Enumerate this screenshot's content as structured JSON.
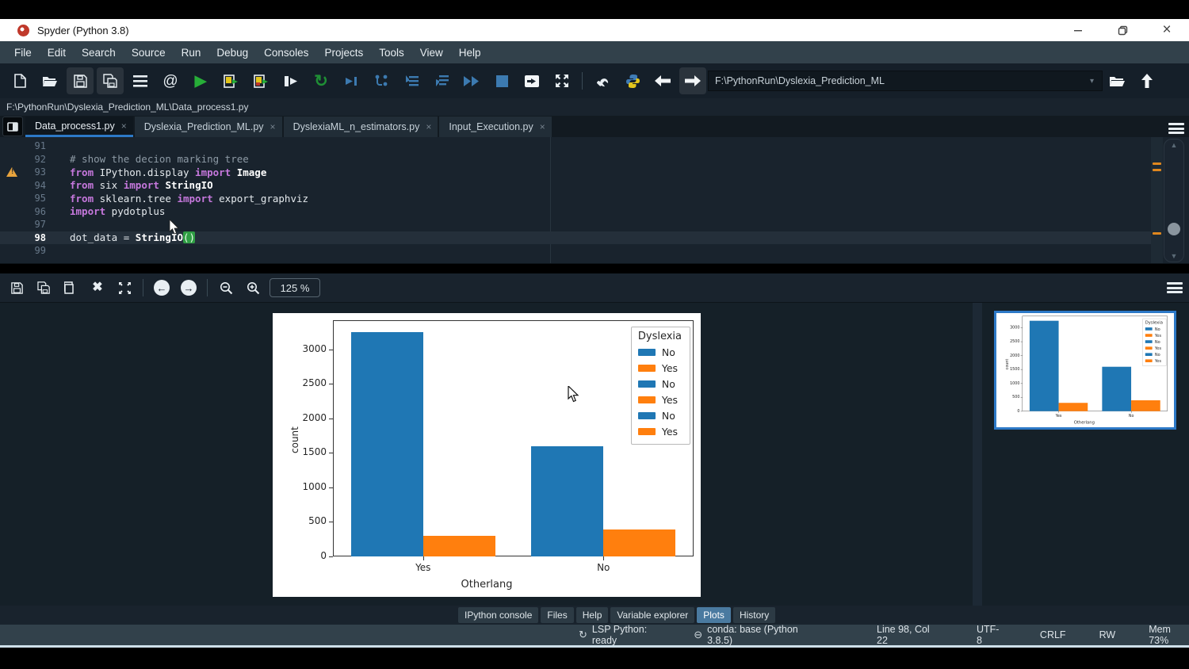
{
  "window": {
    "title": "Spyder (Python 3.8)",
    "controls": {
      "minimize": "minimize",
      "restore": "restore",
      "close": "close"
    }
  },
  "menu": {
    "items": [
      "File",
      "Edit",
      "Search",
      "Source",
      "Run",
      "Debug",
      "Consoles",
      "Projects",
      "Tools",
      "View",
      "Help"
    ]
  },
  "toolbar": {
    "icons": [
      "new-file",
      "open-file",
      "save",
      "save-all",
      "file-switcher",
      "find-symbols",
      "run",
      "run-cell",
      "run-cell-advance",
      "run-selection",
      "rerun-cell",
      "debug",
      "debug-step",
      "debug-step-into",
      "debug-step-return",
      "debug-continue",
      "stop",
      "maximize-pane",
      "fullscreen",
      "preferences",
      "python-path-manager",
      "back",
      "forward",
      "browse-directory",
      "go-up"
    ],
    "path_value": "F:\\PythonRun\\Dyslexia_Prediction_ML"
  },
  "breadcrumb": {
    "path": "F:\\PythonRun\\Dyslexia_Prediction_ML\\Data_process1.py"
  },
  "editor_tabs": [
    {
      "label": "Data_process1.py",
      "active": true
    },
    {
      "label": "Dyslexia_Prediction_ML.py",
      "active": false
    },
    {
      "label": "DyslexiaML_n_estimators.py",
      "active": false
    },
    {
      "label": "Input_Execution.py",
      "active": false
    }
  ],
  "editor": {
    "lines": [
      {
        "num": "91",
        "segments": []
      },
      {
        "num": "92",
        "segments": [
          {
            "t": "# show the decion marking tree",
            "c": "cm"
          }
        ]
      },
      {
        "num": "93",
        "warning": true,
        "segments": [
          {
            "t": "from",
            "c": "kw"
          },
          {
            "t": " IPython.display ",
            "c": "pl"
          },
          {
            "t": "import",
            "c": "kw"
          },
          {
            "t": " ",
            "c": "pl"
          },
          {
            "t": "Image",
            "c": "df"
          }
        ]
      },
      {
        "num": "94",
        "segments": [
          {
            "t": "from",
            "c": "kw"
          },
          {
            "t": " six ",
            "c": "pl"
          },
          {
            "t": "import",
            "c": "kw"
          },
          {
            "t": " ",
            "c": "pl"
          },
          {
            "t": "StringIO",
            "c": "df"
          }
        ]
      },
      {
        "num": "95",
        "segments": [
          {
            "t": "from",
            "c": "kw"
          },
          {
            "t": " sklearn.tree ",
            "c": "pl"
          },
          {
            "t": "import",
            "c": "kw"
          },
          {
            "t": " export_graphviz",
            "c": "pl"
          }
        ]
      },
      {
        "num": "96",
        "segments": [
          {
            "t": "import",
            "c": "kw"
          },
          {
            "t": " pydotplus",
            "c": "pl"
          }
        ]
      },
      {
        "num": "97",
        "segments": []
      },
      {
        "num": "98",
        "current": true,
        "segments": [
          {
            "t": "dot_data = ",
            "c": "pl"
          },
          {
            "t": "StringIO",
            "c": "df"
          },
          {
            "t": "()",
            "c": "paren"
          }
        ]
      },
      {
        "num": "99",
        "segments": []
      }
    ]
  },
  "plots_toolbar": {
    "icons": [
      "save-plot",
      "save-all-plots",
      "copy-plot",
      "remove-plot",
      "fit-plot",
      "previous-plot",
      "next-plot",
      "zoom-out",
      "zoom-in"
    ],
    "zoom_level": "125 %"
  },
  "chart_data": {
    "type": "bar",
    "title": "",
    "xlabel": "Otherlang",
    "ylabel": "count",
    "categories": [
      "Yes",
      "No"
    ],
    "series": [
      {
        "name": "No",
        "color": "#1f77b4",
        "values": [
          3250,
          1600
        ]
      },
      {
        "name": "Yes",
        "color": "#ff7f0e",
        "values": [
          300,
          390
        ]
      }
    ],
    "legend": {
      "title": "Dyslexia",
      "position": "upper right",
      "entries": [
        {
          "label": "No",
          "color": "#1f77b4"
        },
        {
          "label": "Yes",
          "color": "#ff7f0e"
        },
        {
          "label": "No",
          "color": "#1f77b4"
        },
        {
          "label": "Yes",
          "color": "#ff7f0e"
        },
        {
          "label": "No",
          "color": "#1f77b4"
        },
        {
          "label": "Yes",
          "color": "#ff7f0e"
        }
      ]
    },
    "yticks": [
      0,
      500,
      1000,
      1500,
      2000,
      2500,
      3000
    ],
    "ylim": [
      0,
      3420
    ],
    "grid": false
  },
  "bottom_tabs": [
    {
      "label": "IPython console",
      "active": false
    },
    {
      "label": "Files",
      "active": false
    },
    {
      "label": "Help",
      "active": false
    },
    {
      "label": "Variable explorer",
      "active": false
    },
    {
      "label": "Plots",
      "active": true
    },
    {
      "label": "History",
      "active": false
    }
  ],
  "statusbar": {
    "lsp": "LSP Python: ready",
    "conda": "conda: base (Python 3.8.5)",
    "cursor_position": "Line 98, Col 22",
    "encoding": "UTF-8",
    "eol": "CRLF",
    "permissions": "RW",
    "memory": "Mem 73%"
  },
  "colors": {
    "accent_blue": "#2d79c7",
    "bar_blue": "#1f77b4",
    "bar_orange": "#ff7f0e",
    "warning_orange": "#e8a33d",
    "run_green": "#27ae38",
    "debug_blue": "#3c7ab0"
  }
}
